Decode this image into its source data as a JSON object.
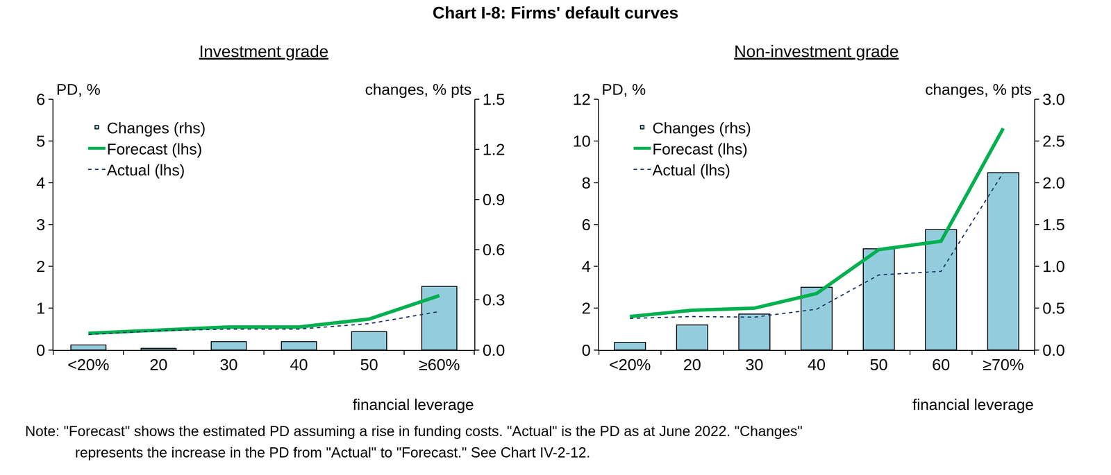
{
  "title": "Chart I-8: Firms' default curves",
  "note": [
    "Note: \"Forecast\" shows the estimated PD assuming a rise in funding costs. \"Actual\" is the PD as at June 2022. \"Changes\"",
    "represents the increase in the PD from \"Actual\" to \"Forecast.\" See Chart IV-2-12."
  ],
  "chart_data": [
    {
      "type": "bar",
      "title": "Investment grade",
      "categories": [
        "<20%",
        "20",
        "30",
        "40",
        "50",
        "≥60%"
      ],
      "x_label": "financial leverage",
      "y_label": "PD, %",
      "y2_label": "changes, % pts",
      "ylim": [
        0,
        6
      ],
      "yticks": [
        0,
        1,
        2,
        3,
        4,
        5,
        6
      ],
      "y2lim": [
        0,
        1.5
      ],
      "y2ticks": [
        {
          "value": 0,
          "label": "0.0"
        },
        0.3,
        0.6,
        0.9,
        1.2,
        1.5
      ],
      "grid": false,
      "legend": "upper left",
      "series": [
        {
          "name": "Changes (rhs)",
          "type": "bar",
          "axis": "y2",
          "color": "#93cddd",
          "values": [
            0.03,
            0.01,
            0.05,
            0.05,
            0.11,
            0.38
          ]
        },
        {
          "name": "Forecast (lhs)",
          "type": "line",
          "color": "#00b050",
          "line_style": "solid",
          "values": [
            0.4,
            0.47,
            0.55,
            0.55,
            0.74,
            1.3
          ]
        },
        {
          "name": "Actual (lhs)",
          "type": "line",
          "color": "#1f3864",
          "line_style": "dashed",
          "values": [
            0.37,
            0.46,
            0.5,
            0.5,
            0.63,
            0.92
          ]
        }
      ]
    },
    {
      "type": "bar",
      "title": "Non-investment grade",
      "categories": [
        "<20%",
        "20",
        "30",
        "40",
        "50",
        "60",
        "≥70%"
      ],
      "x_label": "financial leverage",
      "y_label": "PD, %",
      "y2_label": "changes, % pts",
      "ylim": [
        0,
        12
      ],
      "yticks": [
        0,
        2,
        4,
        6,
        8,
        10,
        12
      ],
      "y2lim": [
        0,
        3
      ],
      "y2ticks": [
        {
          "value": 0,
          "label": "0.0"
        },
        0.5,
        {
          "value": 1,
          "label": "1.0"
        },
        1.5,
        {
          "value": 2,
          "label": "2.0"
        },
        2.5,
        {
          "value": 3,
          "label": "3.0"
        }
      ],
      "grid": false,
      "legend": "upper left",
      "series": [
        {
          "name": "Changes (rhs)",
          "type": "bar",
          "axis": "y2",
          "color": "#93cddd",
          "values": [
            0.09,
            0.3,
            0.43,
            0.75,
            1.21,
            1.44,
            2.12
          ]
        },
        {
          "name": "Forecast (lhs)",
          "type": "line",
          "color": "#00b050",
          "line_style": "solid",
          "values": [
            1.6,
            1.9,
            2.0,
            2.7,
            4.8,
            5.2,
            10.6
          ]
        },
        {
          "name": "Actual (lhs)",
          "type": "line",
          "color": "#1f3864",
          "line_style": "dashed",
          "values": [
            1.51,
            1.6,
            1.57,
            1.95,
            3.59,
            3.76,
            8.48
          ]
        }
      ]
    }
  ]
}
